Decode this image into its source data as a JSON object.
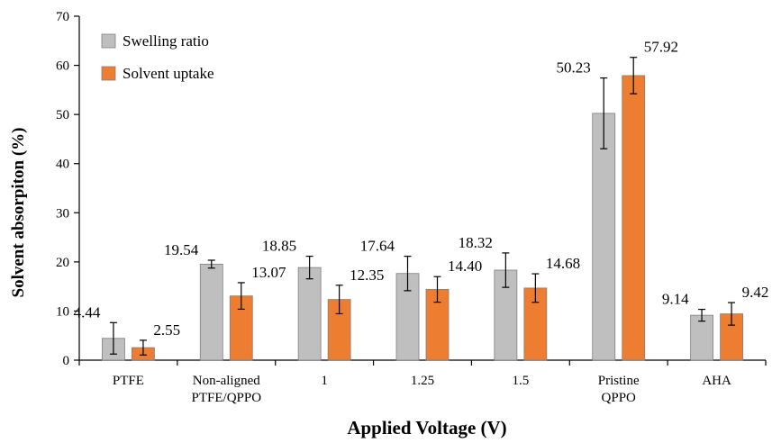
{
  "chart_data": {
    "type": "bar",
    "xlabel": "Applied Voltage (V)",
    "ylabel": "Solvent absorpiton (%)",
    "ylim": [
      0,
      70
    ],
    "yticks": [
      0,
      10,
      20,
      30,
      40,
      50,
      60,
      70
    ],
    "grid": false,
    "legend_position": "top-left",
    "categories": [
      [
        "PTFE"
      ],
      [
        "Non-aligned",
        "PTFE/QPPO"
      ],
      [
        "1"
      ],
      [
        "1.25"
      ],
      [
        "1.5"
      ],
      [
        "Pristine",
        "QPPO"
      ],
      [
        "AHA"
      ]
    ],
    "series": [
      {
        "name": "Swelling ratio",
        "color": "#bfbfbf",
        "values": [
          4.44,
          19.54,
          18.85,
          17.64,
          18.32,
          50.23,
          9.14
        ],
        "labels": [
          "4.44",
          "19.54",
          "18.85",
          "17.64",
          "18.32",
          "50.23",
          "9.14"
        ],
        "errors": [
          3.2,
          0.8,
          2.3,
          3.5,
          3.5,
          7.2,
          1.2
        ]
      },
      {
        "name": "Solvent uptake",
        "color": "#ed7d31",
        "values": [
          2.55,
          13.07,
          12.35,
          14.4,
          14.68,
          57.92,
          9.42
        ],
        "labels": [
          "2.55",
          "13.07",
          "12.35",
          "14.40",
          "14.68",
          "57.92",
          "9.42"
        ],
        "errors": [
          1.5,
          2.7,
          2.9,
          2.6,
          2.9,
          3.7,
          2.3
        ]
      }
    ]
  }
}
